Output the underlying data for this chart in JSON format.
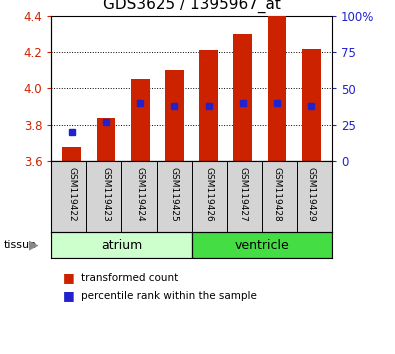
{
  "title": "GDS3625 / 1395967_at",
  "samples": [
    "GSM119422",
    "GSM119423",
    "GSM119424",
    "GSM119425",
    "GSM119426",
    "GSM119427",
    "GSM119428",
    "GSM119429"
  ],
  "transformed_counts": [
    3.68,
    3.84,
    4.05,
    4.1,
    4.21,
    4.3,
    4.4,
    4.22
  ],
  "percentile_ranks": [
    20,
    27,
    40,
    38,
    38,
    40,
    40,
    38
  ],
  "bar_bottom": 3.6,
  "ylim": [
    3.6,
    4.4
  ],
  "yticks_left": [
    3.6,
    3.8,
    4.0,
    4.2,
    4.4
  ],
  "yticks_right": [
    0,
    25,
    50,
    75,
    100
  ],
  "right_ylim": [
    0,
    100
  ],
  "bar_color": "#cc2200",
  "percentile_color": "#2222cc",
  "tissue_groups": {
    "atrium": [
      0,
      1,
      2,
      3
    ],
    "ventricle": [
      4,
      5,
      6,
      7
    ]
  },
  "tissue_colors": {
    "atrium": "#ccffcc",
    "ventricle": "#44dd44"
  },
  "bg_color": "#d4d4d4",
  "title_fontsize": 11,
  "axis_label_color_left": "#cc2200",
  "axis_label_color_right": "#2222cc",
  "legend_square_red": "#cc2200",
  "legend_square_blue": "#2222cc"
}
